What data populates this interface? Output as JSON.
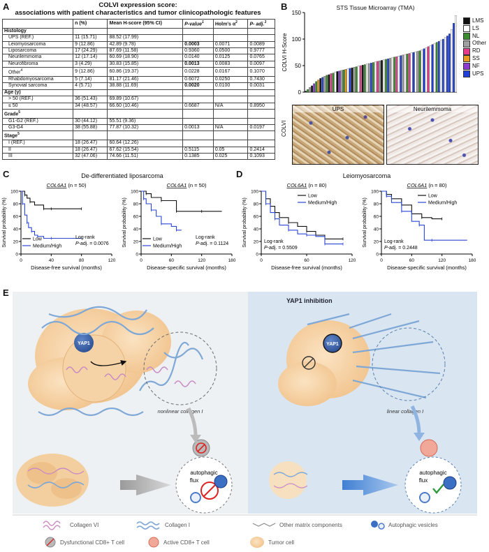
{
  "panelA": {
    "label": "A",
    "title1": "COLVI expression score:",
    "title2": "associations with patient characteristics and tumor clinicopathologic features",
    "headers": [
      "",
      "n (%)",
      "Mean H-score (95% CI)",
      "P-value",
      "Holm's α",
      "P- adj."
    ],
    "header_sups": [
      "",
      "",
      "",
      "1",
      "2",
      "3"
    ],
    "rows": [
      {
        "c": [
          "Histology",
          "",
          "",
          "",
          "",
          ""
        ],
        "sec": true,
        "sup": ""
      },
      {
        "c": [
          "UPS (REF.)",
          "11 (15.71)",
          "88.52 (17.99)",
          "",
          "",
          ""
        ],
        "sec": false,
        "sup": ""
      },
      {
        "c": [
          "Leiomyosarcoma",
          "9 (12.86)",
          "42.89 (9.78)",
          "0.0003",
          "0.0071",
          "0.0089"
        ],
        "sec": false,
        "bold": true,
        "sup": ""
      },
      {
        "c": [
          "Liposarcoma",
          "17 (24.29)",
          "87.69 (11.58)",
          "0.9360",
          "0.0500",
          "0.9777"
        ],
        "sec": false,
        "sup": ""
      },
      {
        "c": [
          "Neurilemmoma",
          "12 (17.14)",
          "60.69 (18.90)",
          "0.0140",
          "0.0125",
          "0.0765"
        ],
        "sec": false,
        "sup": ""
      },
      {
        "c": [
          "Neurofibroma",
          "3 (4.29)",
          "30.83 (15.85)",
          "0.0013",
          "0.0083",
          "0.0097"
        ],
        "sec": false,
        "bold": true,
        "sup": ""
      },
      {
        "c": [
          "Other",
          "9 (12.86)",
          "60.86 (19.37)",
          "0.0228",
          "0.0167",
          "0.1070"
        ],
        "sec": false,
        "sup": "4"
      },
      {
        "c": [
          "Rhabdomyosarcoma",
          "5 (7.14)",
          "81.17 (21.46)",
          "0.6072",
          "0.0250",
          "0.7430"
        ],
        "sec": false,
        "sup": ""
      },
      {
        "c": [
          "Synovial sarcoma",
          "4 (5.71)",
          "38.88 (11.69)",
          "0.0020",
          "0.0100",
          "0.0031"
        ],
        "sec": false,
        "bold": true,
        "sup": ""
      },
      {
        "c": [
          "Age (y)",
          "",
          "",
          "",
          "",
          ""
        ],
        "sec": true,
        "sup": ""
      },
      {
        "c": [
          "> 50 (REF.)",
          "36 (51.43)",
          "69.89 (10.67)",
          "",
          "",
          ""
        ],
        "sec": false,
        "sup": ""
      },
      {
        "c": [
          "≤ 50",
          "34 (48.57)",
          "66.60 (10.46)",
          "0.6687",
          "N/A",
          "0.8950"
        ],
        "sec": false,
        "sup": ""
      },
      {
        "c": [
          "Grade",
          "",
          "",
          "",
          "",
          ""
        ],
        "sec": true,
        "sup": "5"
      },
      {
        "c": [
          "G1-G2 (REF.)",
          "30 (44.12)",
          "55.51 (9.36)",
          "",
          "",
          ""
        ],
        "sec": false,
        "sup": ""
      },
      {
        "c": [
          "G3-G4",
          "38 (55.88)",
          "77.87 (10.32)",
          "0.0013",
          "N/A",
          "0.0197"
        ],
        "sec": false,
        "sup": ""
      },
      {
        "c": [
          "Stage",
          "",
          "",
          "",
          "",
          ""
        ],
        "sec": true,
        "sup": "5"
      },
      {
        "c": [
          "I (REF.)",
          "18 (26.47)",
          "60.64 (12.26)",
          "",
          "",
          ""
        ],
        "sec": false,
        "sup": ""
      },
      {
        "c": [
          "II",
          "18 (26.47)",
          "67.62 (15.54)",
          "0.5115",
          "0.05",
          "0.2414"
        ],
        "sec": false,
        "sup": ""
      },
      {
        "c": [
          "III",
          "32 (47.06)",
          "74.66 (11.51)",
          "0.1385",
          "0.025",
          "0.1093"
        ],
        "sec": false,
        "sup": ""
      }
    ]
  },
  "panelB": {
    "label": "B",
    "title": "STS Tissue Microarray (TMA)",
    "ylabel": "COLVI H-Score",
    "yticks": [
      "0",
      "50",
      "100",
      "150"
    ],
    "legend": [
      {
        "name": "LMS",
        "color": "#111111"
      },
      {
        "name": "LS",
        "color": "#ffffff"
      },
      {
        "name": "NL",
        "color": "#3a8a2e"
      },
      {
        "name": "Other",
        "color": "#a0a0a0"
      },
      {
        "name": "RD",
        "color": "#e83a8c"
      },
      {
        "name": "SS",
        "color": "#e89a20"
      },
      {
        "name": "NF",
        "color": "#8a3acf"
      },
      {
        "name": "UPS",
        "color": "#1f3fd6"
      }
    ],
    "ihc_labels": [
      "UPS",
      "Neurilemmoma"
    ],
    "ihc_side": "COLVI"
  },
  "panelC": {
    "label": "C",
    "title": "De-differentiated liposarcoma"
  },
  "panelD": {
    "label": "D",
    "title": "Leiomyosarcoma"
  },
  "km": {
    "ylabel": "Survival probability (%)",
    "yticks": [
      "0",
      "20",
      "40",
      "60",
      "80",
      "100"
    ],
    "low": "Low",
    "high": "Medium/High",
    "logrank": "Log-rank",
    "padj_prefix": "P",
    "plots": [
      {
        "gene": "COL6A1",
        "n": "(n = 50)",
        "xlabel": "Disease-free survival (months)",
        "xticks": [
          "0",
          "40",
          "80",
          "120"
        ],
        "p": "-adj. = 0.0076",
        "xmax": 120
      },
      {
        "gene": "COL6A1",
        "n": "(n = 50)",
        "xlabel": "Disease-specific survival (months)",
        "xticks": [
          "0",
          "60",
          "120",
          "180"
        ],
        "p": "-adj. = 0.1124",
        "xmax": 180
      },
      {
        "gene": "COL6A1",
        "n": "(n = 80)",
        "xlabel": "Disease-free survival (months)",
        "xticks": [
          "0",
          "60",
          "120"
        ],
        "p": "-adj. = 0.5509",
        "xmax": 120
      },
      {
        "gene": "COL6A1",
        "n": "(n = 80)",
        "xlabel": "Disease-specific survival (months)",
        "xticks": [
          "0",
          "60",
          "120",
          "180"
        ],
        "p": "-adj. = 0.2448",
        "xmax": 180
      }
    ]
  },
  "chart_data": [
    {
      "type": "bar",
      "title": "STS Tissue Microarray (TMA)",
      "ylabel": "COLVI H-Score",
      "ylim": [
        0,
        150
      ],
      "values": [
        2,
        5,
        9,
        12,
        16,
        20,
        23,
        26,
        28,
        30,
        32,
        33,
        35,
        36,
        38,
        39,
        40,
        41,
        42,
        43,
        44,
        45,
        46,
        47,
        48,
        49,
        50,
        51,
        52,
        53,
        54,
        55,
        56,
        57,
        58,
        59,
        60,
        61,
        62,
        63,
        64,
        65,
        66,
        67,
        68,
        69,
        70,
        71,
        72,
        73,
        74,
        75,
        76,
        77,
        78,
        80,
        82,
        84,
        86,
        88,
        90,
        92,
        94,
        96,
        98,
        100,
        103,
        106,
        110,
        118,
        130,
        144
      ],
      "colors": [
        "#111111",
        "#3a8a2e",
        "#a0a0a0",
        "#111111",
        "#8a3acf",
        "#3a8a2e",
        "#e89a20",
        "#111111",
        "#1f3fd6",
        "#a0a0a0",
        "#3a8a2e",
        "#111111",
        "#e83a8c",
        "#3a8a2e",
        "#ffffff",
        "#111111",
        "#8a3acf",
        "#a0a0a0",
        "#3a8a2e",
        "#e89a20",
        "#ffffff",
        "#1f3fd6",
        "#111111",
        "#a0a0a0",
        "#3a8a2e",
        "#ffffff",
        "#e83a8c",
        "#111111",
        "#3a8a2e",
        "#ffffff",
        "#a0a0a0",
        "#1f3fd6",
        "#3a8a2e",
        "#ffffff",
        "#e83a8c",
        "#a0a0a0",
        "#111111",
        "#ffffff",
        "#3a8a2e",
        "#1f3fd6",
        "#a0a0a0",
        "#ffffff",
        "#3a8a2e",
        "#e83a8c",
        "#ffffff",
        "#1f3fd6",
        "#a0a0a0",
        "#ffffff",
        "#3a8a2e",
        "#e83a8c",
        "#ffffff",
        "#1f3fd6",
        "#ffffff",
        "#a0a0a0",
        "#3a8a2e",
        "#ffffff",
        "#1f3fd6",
        "#ffffff",
        "#e83a8c",
        "#ffffff",
        "#1f3fd6",
        "#ffffff",
        "#3a8a2e",
        "#1f3fd6",
        "#ffffff",
        "#1f3fd6",
        "#ffffff",
        "#1f3fd6",
        "#1f3fd6",
        "#ffffff",
        "#1f3fd6",
        "#ffffff"
      ]
    },
    {
      "type": "line",
      "title": "COL6A1 (n = 50)",
      "xlabel": "Disease-free survival (months)",
      "ylabel": "Survival probability (%)",
      "xlim": [
        0,
        120
      ],
      "ylim": [
        0,
        100
      ],
      "series": [
        {
          "name": "Low",
          "x": [
            0,
            5,
            8,
            12,
            18,
            30,
            35,
            40,
            60,
            80
          ],
          "y": [
            100,
            94,
            89,
            83,
            78,
            72,
            72,
            72,
            72,
            72
          ]
        },
        {
          "name": "Medium/High",
          "x": [
            0,
            2,
            5,
            8,
            10,
            14,
            18,
            22,
            30,
            40,
            80
          ],
          "y": [
            100,
            80,
            62,
            50,
            42,
            36,
            30,
            28,
            25,
            25,
            25
          ]
        }
      ]
    },
    {
      "type": "line",
      "title": "COL6A1 (n = 50)",
      "xlabel": "Disease-specific survival (months)",
      "ylabel": "Survival probability (%)",
      "xlim": [
        0,
        180
      ],
      "ylim": [
        0,
        100
      ],
      "series": [
        {
          "name": "Low",
          "x": [
            0,
            10,
            20,
            40,
            60,
            70,
            80,
            120,
            160
          ],
          "y": [
            100,
            96,
            90,
            85,
            85,
            68,
            68,
            68,
            68
          ]
        },
        {
          "name": "Medium/High",
          "x": [
            0,
            5,
            10,
            20,
            30,
            40,
            60,
            70,
            80
          ],
          "y": [
            100,
            88,
            80,
            70,
            60,
            48,
            44,
            38,
            38
          ]
        }
      ]
    },
    {
      "type": "line",
      "title": "COL6A1 (n = 80)",
      "xlabel": "Disease-free survival (months)",
      "ylabel": "Survival probability (%)",
      "xlim": [
        0,
        120
      ],
      "ylim": [
        0,
        100
      ],
      "series": [
        {
          "name": "Low",
          "x": [
            0,
            6,
            12,
            18,
            24,
            36,
            48,
            60,
            72,
            84,
            96,
            108
          ],
          "y": [
            100,
            88,
            76,
            66,
            58,
            50,
            44,
            36,
            30,
            24,
            24,
            24
          ]
        },
        {
          "name": "Medium/High",
          "x": [
            0,
            6,
            12,
            18,
            24,
            36,
            48,
            60,
            72,
            84,
            96,
            108
          ],
          "y": [
            100,
            80,
            66,
            56,
            46,
            38,
            32,
            30,
            28,
            16,
            16,
            16
          ]
        }
      ]
    },
    {
      "type": "line",
      "title": "COL6A1 (n = 80)",
      "xlabel": "Disease-specific survival (months)",
      "ylabel": "Survival probability (%)",
      "xlim": [
        0,
        180
      ],
      "ylim": [
        0,
        100
      ],
      "series": [
        {
          "name": "Low",
          "x": [
            0,
            10,
            20,
            40,
            60,
            80,
            100,
            120
          ],
          "y": [
            100,
            95,
            88,
            78,
            64,
            58,
            56,
            56
          ]
        },
        {
          "name": "Medium/High",
          "x": [
            0,
            10,
            20,
            40,
            60,
            75,
            85,
            100,
            170
          ],
          "y": [
            100,
            92,
            82,
            68,
            52,
            46,
            22,
            22,
            22
          ]
        }
      ]
    }
  ],
  "panelE": {
    "label": "E",
    "right_title": "YAP1 inhibition",
    "yap1": "YAP1",
    "nonlinear": "nonlinear collagen I",
    "linear": "linear collagen I",
    "autophagic": "autophagic",
    "flux": "flux",
    "legend": [
      {
        "key": "collagen6",
        "label": "Collagen VI"
      },
      {
        "key": "collagen1",
        "label": "Collagen I"
      },
      {
        "key": "other",
        "label": "Other matrix components"
      },
      {
        "key": "vesicles",
        "label": "Autophagic vesicles"
      },
      {
        "key": "dysfunctional",
        "label": "Dysfunctional CD8+ T cell"
      },
      {
        "key": "active",
        "label": "Active CD8+ T cell"
      },
      {
        "key": "tumor",
        "label": "Tumor cell"
      }
    ]
  }
}
